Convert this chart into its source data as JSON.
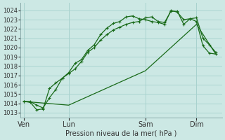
{
  "bg_color": "#cce8e4",
  "grid_color": "#aad4d0",
  "line_color": "#1a6b1a",
  "xlabel_str": "Pression niveau de la mer( hPa )",
  "ylim": [
    1012.5,
    1024.8
  ],
  "xlim": [
    -0.5,
    31.0
  ],
  "yticks": [
    1013,
    1014,
    1015,
    1016,
    1017,
    1018,
    1019,
    1020,
    1021,
    1022,
    1023,
    1024
  ],
  "day_labels": [
    "Ven",
    "Lun",
    "Sam",
    "Dim"
  ],
  "day_positions": [
    0,
    7,
    19,
    27
  ],
  "series1_x": [
    0,
    1,
    2,
    3,
    4,
    5,
    6,
    7,
    8,
    9,
    10,
    11,
    12,
    13,
    14,
    15,
    16,
    17,
    18,
    19,
    20,
    21,
    22,
    23,
    24,
    25,
    26,
    27,
    28,
    29,
    30
  ],
  "series1_y": [
    1014.2,
    1014.2,
    1013.8,
    1013.5,
    1014.6,
    1015.5,
    1016.7,
    1017.2,
    1017.7,
    1018.5,
    1019.5,
    1020.0,
    1020.8,
    1021.4,
    1021.9,
    1022.2,
    1022.5,
    1022.7,
    1022.8,
    1023.2,
    1023.3,
    1022.8,
    1022.7,
    1023.9,
    1023.9,
    1022.5,
    1023.1,
    1022.8,
    1020.2,
    1019.4,
    1019.3
  ],
  "series2_x": [
    0,
    1,
    2,
    3,
    4,
    5,
    6,
    7,
    8,
    9,
    10,
    11,
    12,
    13,
    14,
    15,
    16,
    17,
    18,
    19,
    20,
    21,
    22,
    23,
    24,
    25,
    26,
    27,
    28,
    29,
    30
  ],
  "series2_y": [
    1014.2,
    1014.1,
    1013.3,
    1013.4,
    1015.6,
    1016.2,
    1016.7,
    1017.3,
    1018.3,
    1018.7,
    1019.7,
    1020.3,
    1021.4,
    1022.1,
    1022.6,
    1022.8,
    1023.3,
    1023.4,
    1023.1,
    1023.0,
    1022.8,
    1022.7,
    1022.5,
    1024.0,
    1023.8,
    1023.0,
    1023.1,
    1023.2,
    1021.0,
    1020.3,
    1019.5
  ],
  "series3_x": [
    0,
    7,
    19,
    27,
    30
  ],
  "series3_y": [
    1014.2,
    1013.8,
    1017.5,
    1022.5,
    1019.3
  ]
}
